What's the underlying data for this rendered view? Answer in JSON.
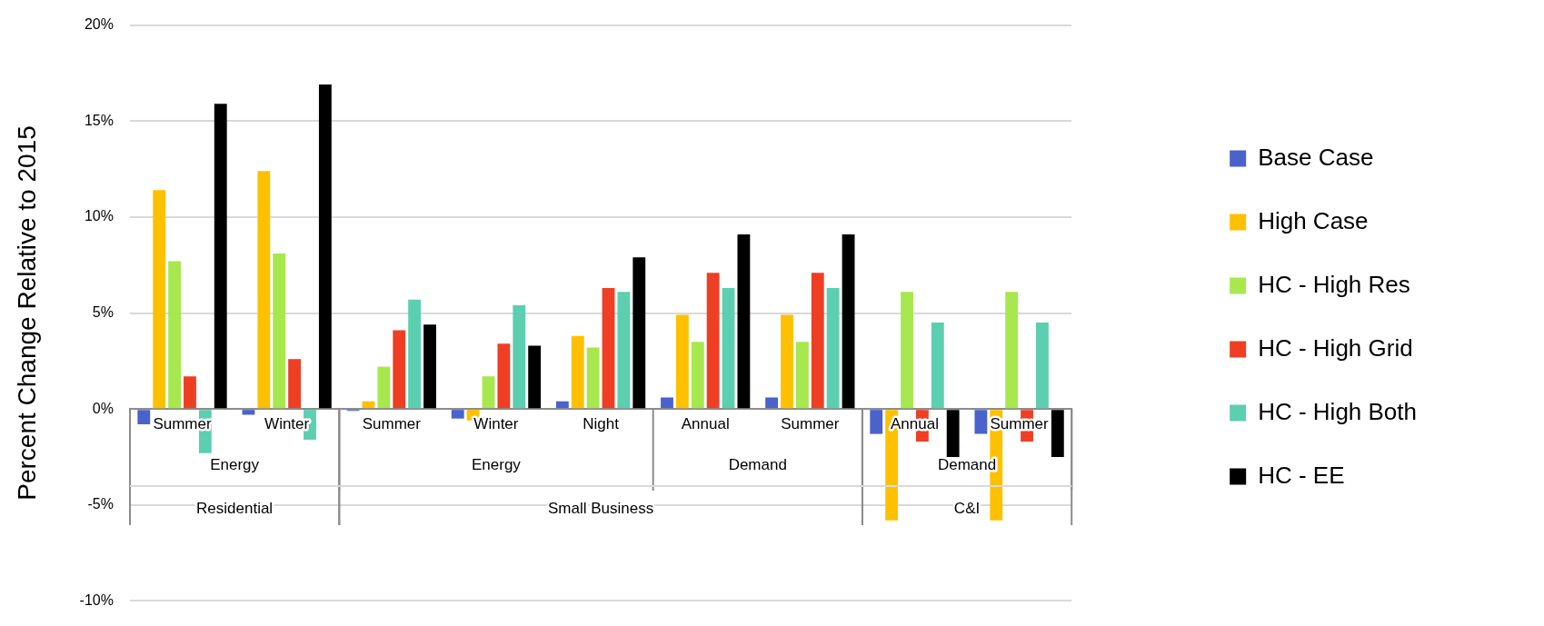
{
  "chart_data": {
    "type": "bar",
    "ylabel": "Percent Change Relative to 2015",
    "categories": [
      "Summer",
      "Winter",
      "Summer",
      "Winter",
      "Night",
      "Annual",
      "Summer",
      "Annual",
      "Summer"
    ],
    "series": [
      {
        "name": "Base Case",
        "color": "#4a62cc",
        "values": [
          -0.8,
          -0.3,
          -0.1,
          -0.5,
          0.4,
          0.6,
          0.6,
          -1.3,
          -1.3
        ]
      },
      {
        "name": "High Case",
        "color": "#ffc000",
        "values": [
          11.4,
          12.4,
          0.4,
          -0.6,
          3.8,
          4.9,
          4.9,
          -5.8,
          -5.8
        ]
      },
      {
        "name": "HC - High Res",
        "color": "#a6e84e",
        "values": [
          7.7,
          8.1,
          2.2,
          1.7,
          3.2,
          3.5,
          3.5,
          6.1,
          6.1
        ]
      },
      {
        "name": "HC - High Grid",
        "color": "#ee3f24",
        "values": [
          1.7,
          2.6,
          4.1,
          3.4,
          6.3,
          7.1,
          7.1,
          -1.7,
          -1.7
        ]
      },
      {
        "name": "HC - High Both",
        "color": "#5ccfb0",
        "values": [
          -2.3,
          -1.6,
          5.7,
          5.4,
          6.1,
          6.3,
          6.3,
          4.5,
          4.5
        ]
      },
      {
        "name": "HC - EE",
        "color": "#000000",
        "values": [
          15.9,
          16.9,
          4.4,
          3.3,
          7.9,
          9.1,
          9.1,
          -2.5,
          -2.5
        ]
      }
    ],
    "ylim": [
      -10,
      20
    ],
    "yticks": [
      {
        "value": -10,
        "label": "-10%"
      },
      {
        "value": -5,
        "label": "-5%"
      },
      {
        "value": 0,
        "label": "0%"
      },
      {
        "value": 5,
        "label": "5%"
      },
      {
        "value": 10,
        "label": "10%"
      },
      {
        "value": 15,
        "label": "15%"
      },
      {
        "value": 20,
        "label": "20%"
      }
    ],
    "grid": "y",
    "legend": "right",
    "annotations": [
      "Energy",
      "Energy",
      "Demand",
      "Demand",
      "Residential",
      "Small Business",
      "C&I"
    ]
  }
}
